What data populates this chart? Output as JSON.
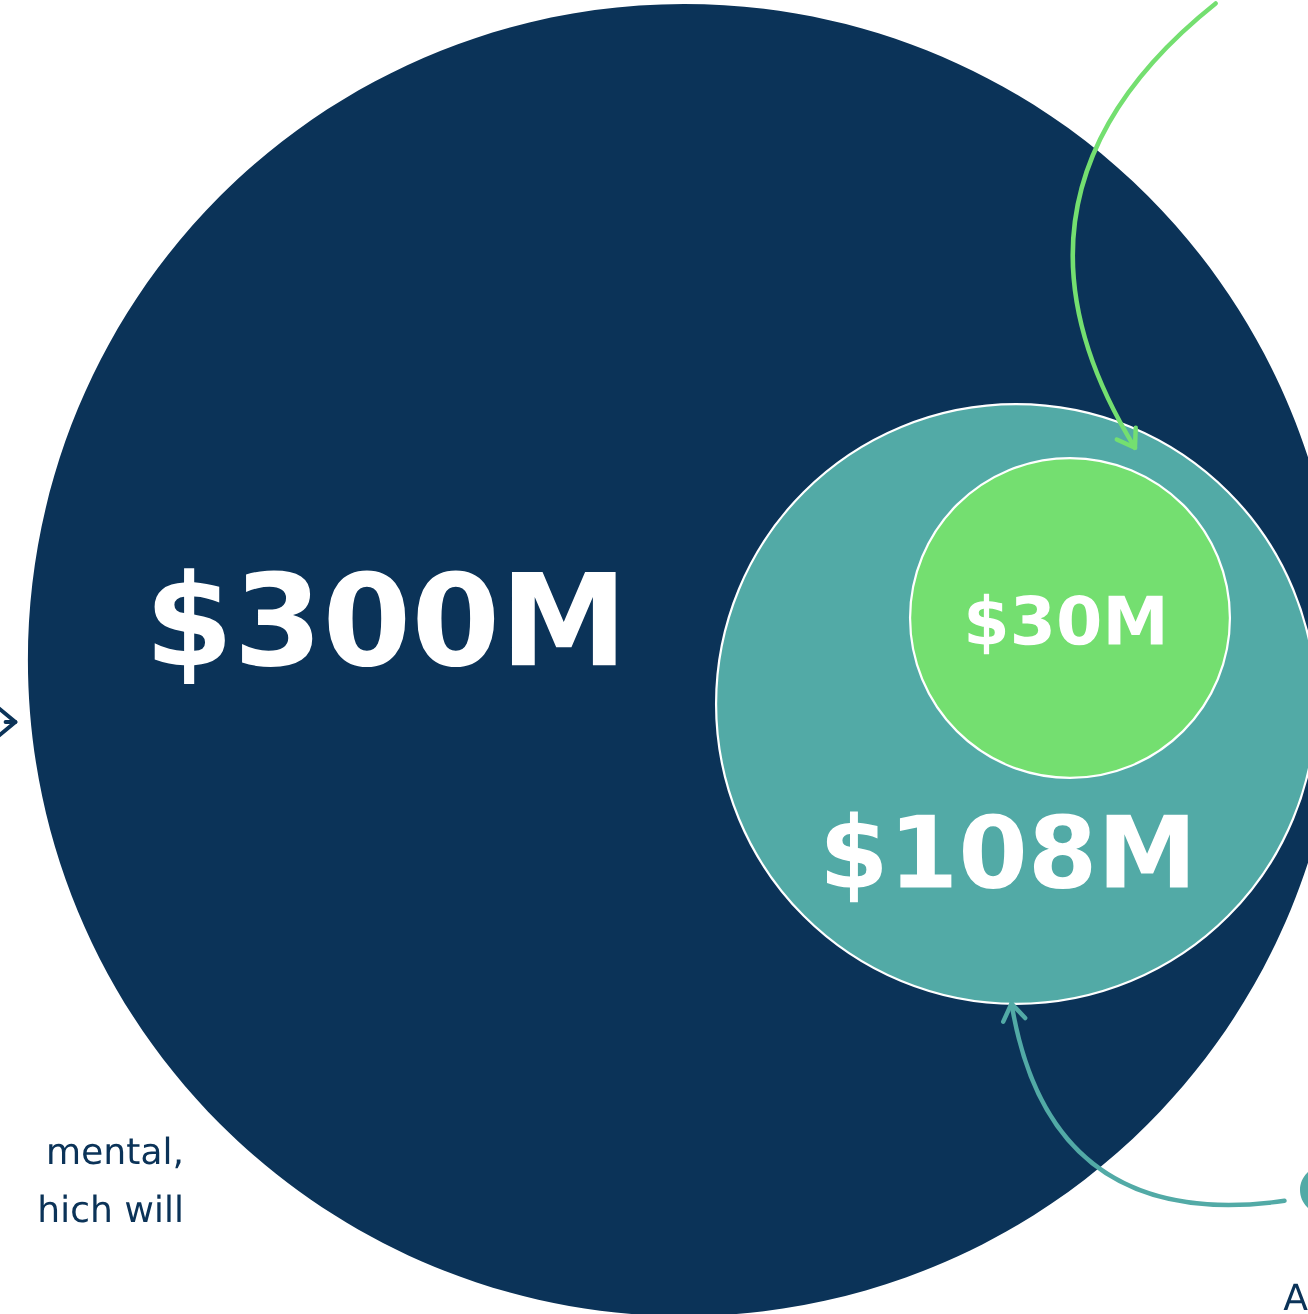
{
  "chart_data": {
    "type": "other",
    "categories": [
      null,
      null,
      null
    ],
    "values": [
      300,
      108,
      30
    ],
    "colors": [
      "#0b3358",
      "#52aaa6",
      "#74df70"
    ],
    "value_labels": [
      "$300M",
      "$108M",
      "$30M"
    ],
    "annotations": [
      "mental,",
      "hich will",
      "A"
    ]
  }
}
